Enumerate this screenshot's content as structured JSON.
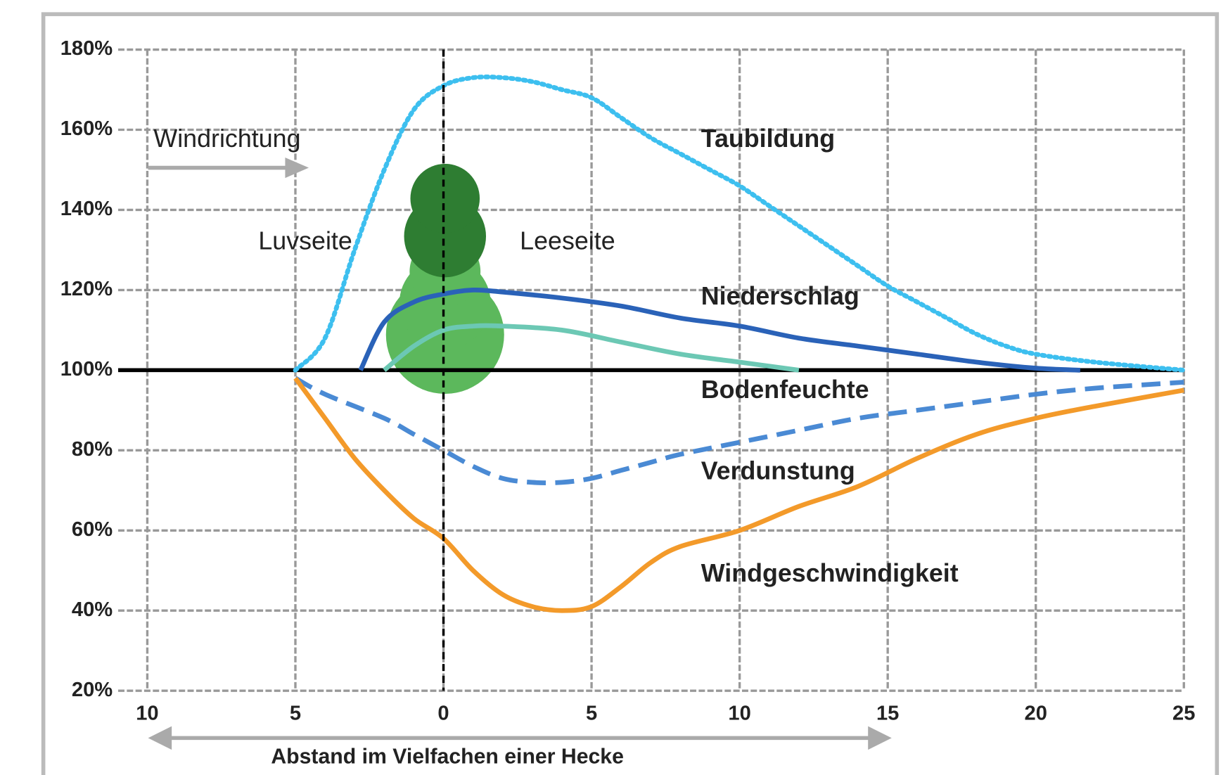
{
  "chart_data": {
    "type": "line",
    "xlabel": "Abstand im Vielfachen einer Hecke",
    "annotations": [
      "Windrichtung",
      "Luvseite",
      "Leeseite"
    ],
    "xlim": [
      -10,
      25
    ],
    "xticks": [
      {
        "value": -10,
        "label": "10"
      },
      {
        "value": -5,
        "label": "5"
      },
      0,
      5,
      10,
      15,
      20,
      25
    ],
    "ylim": [
      20,
      180
    ],
    "yticks": [
      {
        "value": 20,
        "label": "20%"
      },
      {
        "value": 40,
        "label": "40%"
      },
      {
        "value": 60,
        "label": "60%"
      },
      {
        "value": 80,
        "label": "80%"
      },
      {
        "value": 100,
        "label": "100%"
      },
      {
        "value": 120,
        "label": "120%"
      },
      {
        "value": 140,
        "label": "140%"
      },
      {
        "value": 160,
        "label": "160%"
      },
      {
        "value": 180,
        "label": "180%"
      }
    ],
    "grid": true,
    "hline": 100,
    "vline": 0,
    "series": [
      {
        "name": "Taubildung",
        "color": "#3dbfef",
        "style": "dotted",
        "x": [
          -5,
          -4,
          -3,
          -2,
          -1,
          0,
          1,
          2,
          3,
          4,
          5,
          6,
          7,
          8,
          9,
          10,
          11,
          12,
          13,
          14,
          15,
          16,
          17,
          18,
          19,
          20,
          22,
          25
        ],
        "values": [
          100,
          108,
          130,
          150,
          165,
          171,
          173,
          173,
          172,
          170,
          168,
          163,
          158,
          154,
          150,
          146,
          141,
          136,
          131,
          126,
          121,
          117,
          113,
          109,
          106,
          104,
          102,
          100
        ]
      },
      {
        "name": "Niederschlag",
        "color": "#2a62b8",
        "style": "solid",
        "x": [
          -2.8,
          -2,
          -1,
          0,
          1,
          2,
          4,
          6,
          8,
          10,
          12,
          14,
          16,
          18,
          20,
          21.5
        ],
        "values": [
          100,
          112,
          117,
          119,
          120,
          119.5,
          118,
          116,
          113,
          111,
          108,
          106,
          104,
          102,
          100.5,
          100
        ]
      },
      {
        "name": "Bodenfeuchte",
        "color": "#6cc8b4",
        "style": "solid",
        "x": [
          -2,
          -1,
          0,
          1,
          2,
          4,
          6,
          8,
          10,
          12
        ],
        "values": [
          100,
          106,
          110,
          111,
          111,
          110,
          107,
          104,
          102,
          100
        ]
      },
      {
        "name": "Verdunstung",
        "color": "#4a8ad4",
        "style": "dashed",
        "x": [
          -5,
          -4,
          -2,
          -1,
          0,
          1,
          2,
          3,
          4,
          5,
          6,
          7,
          8,
          10,
          12,
          14,
          16,
          18,
          20,
          22,
          25
        ],
        "values": [
          98,
          94,
          88,
          84,
          80,
          76,
          73,
          72,
          72,
          73,
          75,
          77,
          79,
          82,
          85,
          88,
          90,
          92,
          94,
          95.5,
          97
        ]
      },
      {
        "name": "Windgeschwindigkeit",
        "color": "#f39a2a",
        "style": "solid",
        "x": [
          -5,
          -4,
          -3,
          -2,
          -1,
          0,
          1,
          2,
          3,
          4,
          5,
          6,
          7,
          8,
          10,
          12,
          14,
          16,
          18,
          20,
          22,
          25
        ],
        "values": [
          98,
          88,
          78,
          70,
          63,
          58,
          50,
          44,
          41,
          40,
          41,
          46,
          52,
          56,
          60,
          66,
          71,
          78,
          84,
          88,
          91,
          95
        ]
      }
    ]
  }
}
